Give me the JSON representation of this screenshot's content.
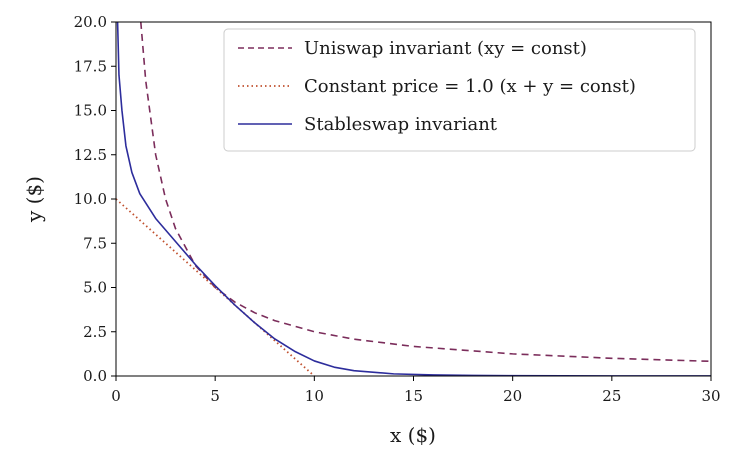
{
  "chart_data": {
    "type": "line",
    "xlabel": "x ($)",
    "ylabel": "y ($)",
    "xlim": [
      0,
      30
    ],
    "ylim": [
      0,
      20
    ],
    "x_ticks": [
      0,
      5,
      10,
      15,
      20,
      25,
      30
    ],
    "y_ticks": [
      0.0,
      2.5,
      5.0,
      7.5,
      10.0,
      12.5,
      15.0,
      17.5,
      20.0
    ],
    "x_tick_labels": [
      "0",
      "5",
      "10",
      "15",
      "20",
      "25",
      "30"
    ],
    "y_tick_labels": [
      "0.0",
      "2.5",
      "5.0",
      "7.5",
      "10.0",
      "12.5",
      "15.0",
      "17.5",
      "20.0"
    ],
    "grid": false,
    "legend_position": "top-right",
    "series": [
      {
        "name": "Uniswap invariant (xy = const)",
        "style": "dashed",
        "color": "#7b2d5b",
        "x": [
          1.25,
          1.5,
          2,
          2.5,
          3,
          4,
          5,
          6,
          7,
          8,
          10,
          12,
          15,
          20,
          25,
          30
        ],
        "y": [
          20,
          16.67,
          12.5,
          10,
          8.33,
          6.25,
          5,
          4.17,
          3.57,
          3.13,
          2.5,
          2.08,
          1.67,
          1.25,
          1,
          0.83
        ]
      },
      {
        "name": "Constant price = 1.0 (x + y = const)",
        "style": "dotted",
        "color": "#c0502e",
        "x": [
          0,
          2.5,
          5,
          7.5,
          10
        ],
        "y": [
          10,
          7.5,
          5,
          2.5,
          0
        ]
      },
      {
        "name": "Stableswap invariant",
        "style": "solid",
        "color": "#2d2d9c",
        "x": [
          0.08,
          0.15,
          0.3,
          0.5,
          0.8,
          1.2,
          2,
          3,
          4,
          5,
          6,
          7,
          8,
          9,
          10,
          11,
          12,
          14,
          16,
          18,
          20,
          25,
          30
        ],
        "y": [
          20,
          17,
          15,
          13,
          11.5,
          10.3,
          8.9,
          7.6,
          6.3,
          5.1,
          4.0,
          3.0,
          2.1,
          1.4,
          0.85,
          0.5,
          0.3,
          0.12,
          0.06,
          0.03,
          0.015,
          0.005,
          0.002
        ]
      }
    ]
  }
}
